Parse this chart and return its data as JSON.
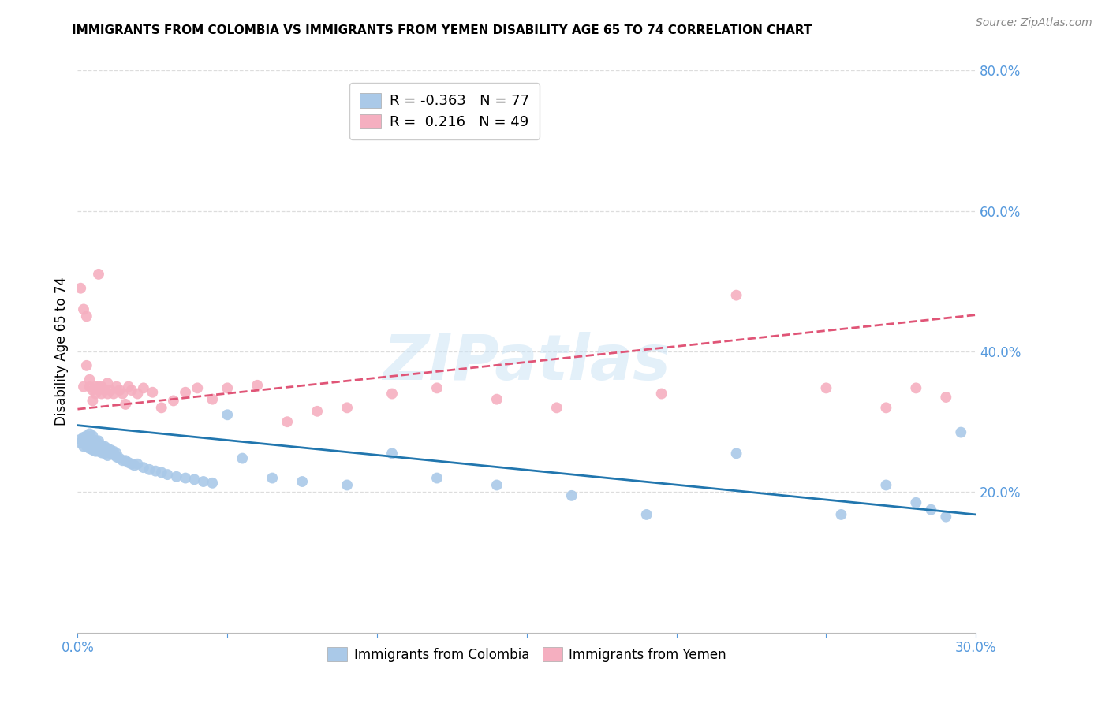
{
  "title": "IMMIGRANTS FROM COLOMBIA VS IMMIGRANTS FROM YEMEN DISABILITY AGE 65 TO 74 CORRELATION CHART",
  "source": "Source: ZipAtlas.com",
  "ylabel": "Disability Age 65 to 74",
  "xlim": [
    0.0,
    0.3
  ],
  "ylim": [
    0.0,
    0.8
  ],
  "xticks": [
    0.0,
    0.05,
    0.1,
    0.15,
    0.2,
    0.25,
    0.3
  ],
  "yticks": [
    0.2,
    0.4,
    0.6,
    0.8
  ],
  "colombia_color": "#aac9e8",
  "yemen_color": "#f5afc0",
  "colombia_line_color": "#2176ae",
  "yemen_line_color": "#e05577",
  "colombia_R": -0.363,
  "colombia_N": 77,
  "yemen_R": 0.216,
  "yemen_N": 49,
  "colombia_scatter_x": [
    0.001,
    0.001,
    0.002,
    0.002,
    0.002,
    0.003,
    0.003,
    0.003,
    0.003,
    0.003,
    0.004,
    0.004,
    0.004,
    0.004,
    0.004,
    0.005,
    0.005,
    0.005,
    0.005,
    0.005,
    0.006,
    0.006,
    0.006,
    0.006,
    0.007,
    0.007,
    0.007,
    0.007,
    0.008,
    0.008,
    0.008,
    0.009,
    0.009,
    0.009,
    0.01,
    0.01,
    0.01,
    0.011,
    0.011,
    0.012,
    0.012,
    0.013,
    0.013,
    0.014,
    0.015,
    0.016,
    0.017,
    0.018,
    0.019,
    0.02,
    0.022,
    0.024,
    0.026,
    0.028,
    0.03,
    0.033,
    0.036,
    0.039,
    0.042,
    0.045,
    0.05,
    0.055,
    0.065,
    0.075,
    0.09,
    0.105,
    0.12,
    0.14,
    0.165,
    0.19,
    0.22,
    0.255,
    0.27,
    0.28,
    0.285,
    0.29,
    0.295
  ],
  "colombia_scatter_y": [
    0.27,
    0.275,
    0.265,
    0.27,
    0.278,
    0.265,
    0.27,
    0.275,
    0.28,
    0.268,
    0.262,
    0.268,
    0.273,
    0.278,
    0.283,
    0.26,
    0.265,
    0.27,
    0.275,
    0.28,
    0.258,
    0.263,
    0.268,
    0.273,
    0.258,
    0.263,
    0.268,
    0.273,
    0.256,
    0.261,
    0.266,
    0.255,
    0.26,
    0.265,
    0.252,
    0.257,
    0.262,
    0.255,
    0.26,
    0.253,
    0.258,
    0.25,
    0.255,
    0.248,
    0.245,
    0.245,
    0.242,
    0.24,
    0.238,
    0.24,
    0.235,
    0.232,
    0.23,
    0.228,
    0.225,
    0.222,
    0.22,
    0.218,
    0.215,
    0.213,
    0.31,
    0.248,
    0.22,
    0.215,
    0.21,
    0.255,
    0.22,
    0.21,
    0.195,
    0.168,
    0.255,
    0.168,
    0.21,
    0.185,
    0.175,
    0.165,
    0.285
  ],
  "yemen_scatter_x": [
    0.001,
    0.002,
    0.002,
    0.003,
    0.003,
    0.004,
    0.004,
    0.005,
    0.005,
    0.006,
    0.006,
    0.007,
    0.007,
    0.008,
    0.008,
    0.009,
    0.01,
    0.01,
    0.011,
    0.012,
    0.013,
    0.014,
    0.015,
    0.016,
    0.017,
    0.018,
    0.02,
    0.022,
    0.025,
    0.028,
    0.032,
    0.036,
    0.04,
    0.045,
    0.05,
    0.06,
    0.07,
    0.08,
    0.09,
    0.105,
    0.12,
    0.14,
    0.16,
    0.195,
    0.22,
    0.25,
    0.27,
    0.28,
    0.29
  ],
  "yemen_scatter_y": [
    0.49,
    0.35,
    0.46,
    0.38,
    0.45,
    0.35,
    0.36,
    0.33,
    0.345,
    0.35,
    0.34,
    0.51,
    0.35,
    0.34,
    0.35,
    0.345,
    0.34,
    0.355,
    0.345,
    0.34,
    0.35,
    0.345,
    0.34,
    0.325,
    0.35,
    0.345,
    0.34,
    0.348,
    0.342,
    0.32,
    0.33,
    0.342,
    0.348,
    0.332,
    0.348,
    0.352,
    0.3,
    0.315,
    0.32,
    0.34,
    0.348,
    0.332,
    0.32,
    0.34,
    0.48,
    0.348,
    0.32,
    0.348,
    0.335
  ],
  "colombia_trend_x": [
    0.0,
    0.3
  ],
  "colombia_trend_y": [
    0.295,
    0.168
  ],
  "yemen_trend_x": [
    0.0,
    0.3
  ],
  "yemen_trend_y": [
    0.318,
    0.452
  ],
  "watermark": "ZIPatlas",
  "tick_color": "#5599dd",
  "grid_color": "#dddddd",
  "legend_labels": [
    "Immigrants from Colombia",
    "Immigrants from Yemen"
  ]
}
